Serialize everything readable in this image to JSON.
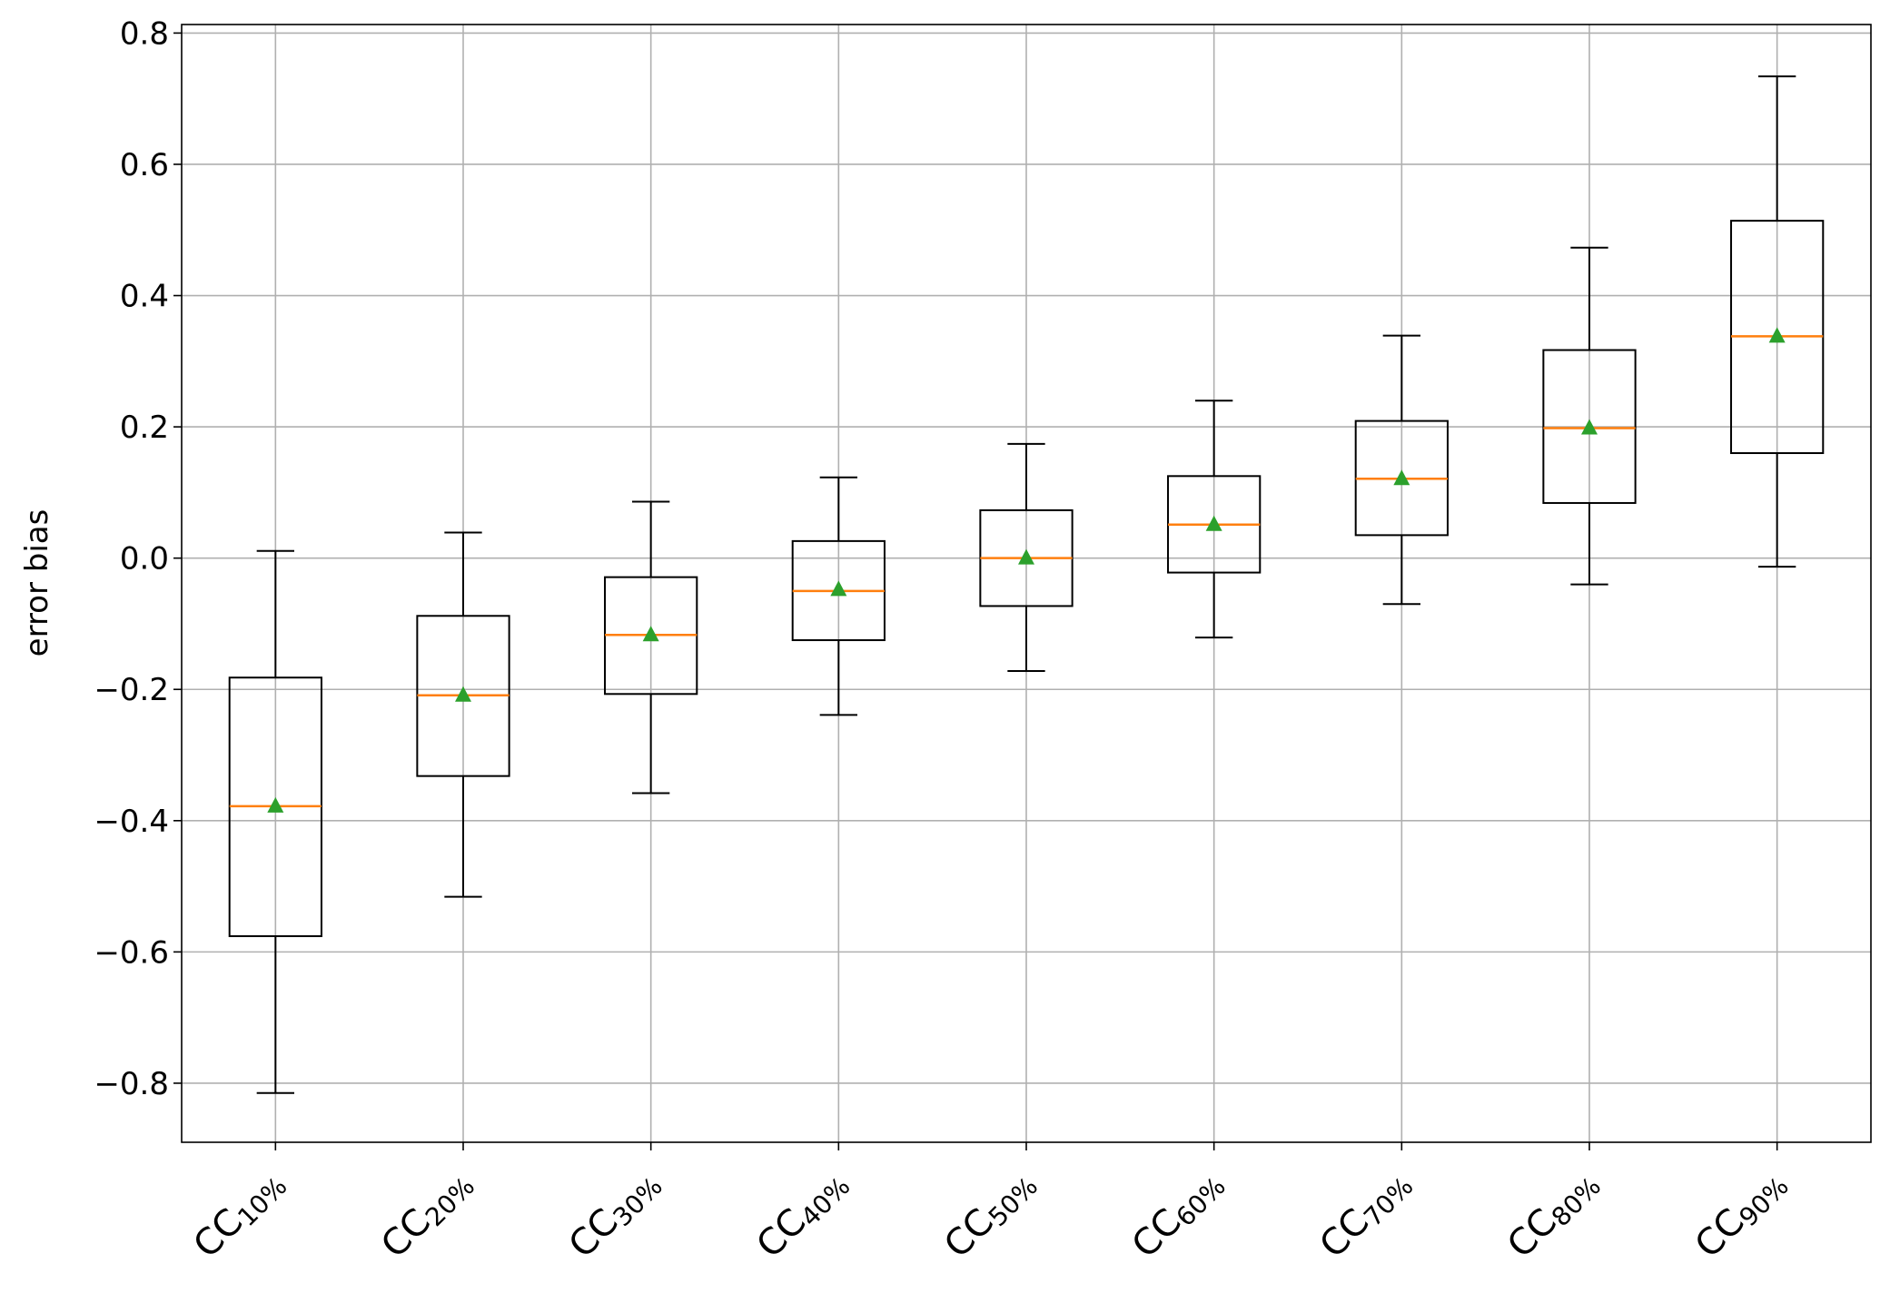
{
  "chart_data": {
    "type": "box",
    "title": "",
    "xlabel": "",
    "ylabel": "error bias",
    "ylim": [
      -0.89,
      0.813
    ],
    "grid": true,
    "yticks": [
      -0.8,
      -0.6,
      -0.4,
      -0.2,
      0.0,
      0.2,
      0.4,
      0.6,
      0.8
    ],
    "ytick_labels": [
      "−0.8",
      "−0.6",
      "−0.4",
      "−0.2",
      "0.0",
      "0.2",
      "0.4",
      "0.6",
      "0.8"
    ],
    "categories": [
      {
        "base": "CC",
        "sub": "10%"
      },
      {
        "base": "CC",
        "sub": "20%"
      },
      {
        "base": "CC",
        "sub": "30%"
      },
      {
        "base": "CC",
        "sub": "40%"
      },
      {
        "base": "CC",
        "sub": "50%"
      },
      {
        "base": "CC",
        "sub": "60%"
      },
      {
        "base": "CC",
        "sub": "70%"
      },
      {
        "base": "CC",
        "sub": "80%"
      },
      {
        "base": "CC",
        "sub": "90%"
      }
    ],
    "boxes": [
      {
        "whisker_low": -0.815,
        "q1": -0.576,
        "median": -0.378,
        "q3": -0.182,
        "whisker_high": 0.011,
        "mean": -0.378
      },
      {
        "whisker_low": -0.516,
        "q1": -0.332,
        "median": -0.209,
        "q3": -0.088,
        "whisker_high": 0.039,
        "mean": -0.209
      },
      {
        "whisker_low": -0.358,
        "q1": -0.207,
        "median": -0.117,
        "q3": -0.029,
        "whisker_high": 0.086,
        "mean": -0.117
      },
      {
        "whisker_low": -0.239,
        "q1": -0.125,
        "median": -0.05,
        "q3": 0.026,
        "whisker_high": 0.123,
        "mean": -0.048
      },
      {
        "whisker_low": -0.172,
        "q1": -0.073,
        "median": 0.0,
        "q3": 0.073,
        "whisker_high": 0.174,
        "mean": 0.0
      },
      {
        "whisker_low": -0.121,
        "q1": -0.022,
        "median": 0.051,
        "q3": 0.125,
        "whisker_high": 0.24,
        "mean": 0.051
      },
      {
        "whisker_low": -0.07,
        "q1": 0.035,
        "median": 0.121,
        "q3": 0.209,
        "whisker_high": 0.339,
        "mean": 0.121
      },
      {
        "whisker_low": -0.04,
        "q1": 0.084,
        "median": 0.198,
        "q3": 0.317,
        "whisker_high": 0.473,
        "mean": 0.198
      },
      {
        "whisker_low": -0.013,
        "q1": 0.16,
        "median": 0.338,
        "q3": 0.514,
        "whisker_high": 0.734,
        "mean": 0.338
      }
    ],
    "colors": {
      "box": "#000000",
      "median": "#ff7f0e",
      "mean": "#2ca02c",
      "grid": "#b0b0b0"
    }
  }
}
